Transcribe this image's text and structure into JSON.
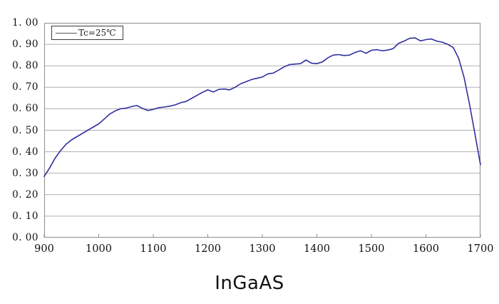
{
  "chart": {
    "legend": {
      "label": "Tc=25℃",
      "line_color": "#5a5a5a"
    },
    "colors": {
      "series": "#2f2f9e",
      "grid": "#b0b0b0",
      "border": "#8c8c8c",
      "text": "#111111",
      "background": "#ffffff"
    },
    "y_axis": {
      "tick_labels": [
        "1. 00",
        "0. 90",
        "0. 80",
        "0. 70",
        "0. 60",
        "0. 50",
        "0. 40",
        "0. 30",
        "0. 20",
        "0. 10",
        "0. 00"
      ],
      "tick_values": [
        1.0,
        0.9,
        0.8,
        0.7,
        0.6,
        0.5,
        0.4,
        0.3,
        0.2,
        0.1,
        0.0
      ]
    },
    "x_axis": {
      "tick_labels": [
        "900",
        "1000",
        "1100",
        "1200",
        "1300",
        "1400",
        "1500",
        "1600",
        "1700"
      ],
      "tick_values": [
        900,
        1000,
        1100,
        1200,
        1300,
        1400,
        1500,
        1600,
        1700
      ]
    }
  },
  "chart_data": {
    "type": "line",
    "title": "InGaAS",
    "xlabel": "",
    "ylabel": "",
    "xlim": [
      900,
      1700
    ],
    "ylim": [
      0.0,
      1.0
    ],
    "grid": "horizontal-only",
    "legend_position": "top-left-inside",
    "series": [
      {
        "name": "Tc=25℃",
        "color": "#2f2f9e",
        "points": [
          [
            900,
            0.285
          ],
          [
            910,
            0.325
          ],
          [
            920,
            0.37
          ],
          [
            930,
            0.405
          ],
          [
            940,
            0.435
          ],
          [
            950,
            0.455
          ],
          [
            960,
            0.47
          ],
          [
            970,
            0.485
          ],
          [
            980,
            0.5
          ],
          [
            990,
            0.515
          ],
          [
            1000,
            0.53
          ],
          [
            1010,
            0.552
          ],
          [
            1020,
            0.575
          ],
          [
            1030,
            0.59
          ],
          [
            1040,
            0.6
          ],
          [
            1050,
            0.603
          ],
          [
            1060,
            0.61
          ],
          [
            1070,
            0.615
          ],
          [
            1080,
            0.602
          ],
          [
            1090,
            0.592
          ],
          [
            1100,
            0.597
          ],
          [
            1110,
            0.605
          ],
          [
            1120,
            0.608
          ],
          [
            1130,
            0.612
          ],
          [
            1140,
            0.618
          ],
          [
            1150,
            0.628
          ],
          [
            1160,
            0.634
          ],
          [
            1170,
            0.648
          ],
          [
            1180,
            0.662
          ],
          [
            1190,
            0.676
          ],
          [
            1200,
            0.688
          ],
          [
            1210,
            0.678
          ],
          [
            1220,
            0.69
          ],
          [
            1230,
            0.692
          ],
          [
            1240,
            0.688
          ],
          [
            1250,
            0.7
          ],
          [
            1260,
            0.716
          ],
          [
            1270,
            0.726
          ],
          [
            1280,
            0.736
          ],
          [
            1290,
            0.742
          ],
          [
            1300,
            0.748
          ],
          [
            1310,
            0.762
          ],
          [
            1320,
            0.766
          ],
          [
            1330,
            0.78
          ],
          [
            1340,
            0.795
          ],
          [
            1350,
            0.806
          ],
          [
            1360,
            0.808
          ],
          [
            1370,
            0.81
          ],
          [
            1380,
            0.827
          ],
          [
            1390,
            0.812
          ],
          [
            1400,
            0.81
          ],
          [
            1410,
            0.818
          ],
          [
            1420,
            0.837
          ],
          [
            1430,
            0.85
          ],
          [
            1440,
            0.852
          ],
          [
            1450,
            0.848
          ],
          [
            1460,
            0.85
          ],
          [
            1470,
            0.862
          ],
          [
            1480,
            0.87
          ],
          [
            1490,
            0.858
          ],
          [
            1500,
            0.872
          ],
          [
            1510,
            0.875
          ],
          [
            1520,
            0.87
          ],
          [
            1530,
            0.873
          ],
          [
            1540,
            0.88
          ],
          [
            1550,
            0.905
          ],
          [
            1560,
            0.915
          ],
          [
            1570,
            0.928
          ],
          [
            1580,
            0.93
          ],
          [
            1590,
            0.916
          ],
          [
            1600,
            0.922
          ],
          [
            1610,
            0.925
          ],
          [
            1620,
            0.915
          ],
          [
            1630,
            0.91
          ],
          [
            1640,
            0.9
          ],
          [
            1650,
            0.885
          ],
          [
            1660,
            0.835
          ],
          [
            1670,
            0.745
          ],
          [
            1680,
            0.62
          ],
          [
            1690,
            0.48
          ],
          [
            1700,
            0.34
          ]
        ]
      }
    ]
  }
}
